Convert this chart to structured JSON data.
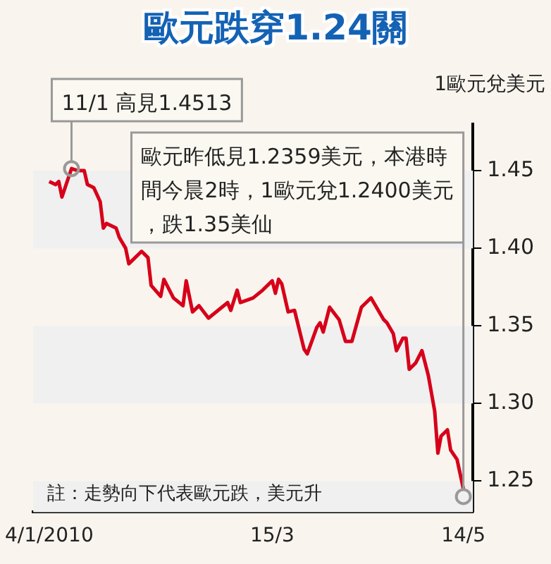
{
  "chart_data": {
    "type": "line",
    "title": "歐元跌穿1.24關",
    "ylabel": "1歐元兌美元",
    "x": [
      "2010-01-04",
      "2010-01-06",
      "2010-01-07",
      "2010-01-08",
      "2010-01-11",
      "2010-01-13",
      "2010-01-15",
      "2010-01-16",
      "2010-01-18",
      "2010-01-20",
      "2010-01-21",
      "2010-01-22",
      "2010-01-25",
      "2010-01-26",
      "2010-01-28",
      "2010-01-29",
      "2010-02-02",
      "2010-02-04",
      "2010-02-05",
      "2010-02-08",
      "2010-02-09",
      "2010-02-12",
      "2010-02-15",
      "2010-02-16",
      "2010-02-18",
      "2010-02-20",
      "2010-02-23",
      "2010-02-26",
      "2010-03-01",
      "2010-03-02",
      "2010-03-04",
      "2010-03-05",
      "2010-03-09",
      "2010-03-12",
      "2010-03-15",
      "2010-03-16",
      "2010-03-17",
      "2010-03-18",
      "2010-03-20",
      "2010-03-22",
      "2010-03-25",
      "2010-03-26",
      "2010-03-29",
      "2010-03-30",
      "2010-03-31",
      "2010-04-02",
      "2010-04-05",
      "2010-04-07",
      "2010-04-09",
      "2010-04-12",
      "2010-04-15",
      "2010-04-19",
      "2010-04-20",
      "2010-04-22",
      "2010-04-23",
      "2010-04-25",
      "2010-04-26",
      "2010-04-27",
      "2010-04-29",
      "2010-05-01",
      "2010-05-03",
      "2010-05-05",
      "2010-05-06",
      "2010-05-07",
      "2010-05-09",
      "2010-05-10",
      "2010-05-12",
      "2010-05-14"
    ],
    "series": [
      {
        "color": "#d7001a",
        "values": [
          1.443,
          1.441,
          1.443,
          1.433,
          1.4513,
          1.45,
          1.45,
          1.441,
          1.439,
          1.43,
          1.413,
          1.416,
          1.413,
          1.407,
          1.4,
          1.39,
          1.398,
          1.394,
          1.376,
          1.369,
          1.38,
          1.368,
          1.363,
          1.379,
          1.359,
          1.363,
          1.355,
          1.36,
          1.365,
          1.36,
          1.373,
          1.365,
          1.368,
          1.373,
          1.379,
          1.371,
          1.38,
          1.377,
          1.359,
          1.36,
          1.335,
          1.332,
          1.349,
          1.352,
          1.346,
          1.362,
          1.354,
          1.34,
          1.34,
          1.362,
          1.368,
          1.354,
          1.352,
          1.345,
          1.334,
          1.342,
          1.342,
          1.322,
          1.326,
          1.334,
          1.318,
          1.295,
          1.268,
          1.279,
          1.283,
          1.27,
          1.264,
          1.245
        ]
      }
    ],
    "xlim": [
      "2009-12-30",
      "2010-05-17"
    ],
    "xticks": [
      {
        "value": "2010-01-04",
        "label": "4/1/2010"
      },
      {
        "value": "2010-03-15",
        "label": "15/3"
      },
      {
        "value": "2010-05-14",
        "label": "14/5"
      }
    ],
    "ylim": [
      1.23,
      1.48
    ],
    "yticks": [
      1.25,
      {
        "value": 1.3,
        "label": "1.30"
      },
      1.35,
      {
        "value": 1.4,
        "label": "1.40"
      },
      1.45
    ],
    "bands": [
      {
        "axis": "y",
        "from": 1.4,
        "to": 1.45,
        "color": "#f0f0f0"
      },
      {
        "axis": "y",
        "from": 1.3,
        "to": 1.35,
        "color": "#f0f0f0"
      },
      {
        "axis": "y",
        "from": 1.23,
        "to": 1.25,
        "color": "#f0f0f0"
      }
    ],
    "annotations": [
      "註：走勢向下代表歐元跌，美元升",
      {
        "text": "11/1 高見1.4513",
        "x": "2010-01-11",
        "y": 1.4513
      },
      {
        "text": "歐元昨低見1.2359美元，本港時間今晨2時，1歐元兌1.2400美元，跌1.35美仙",
        "x": "2010-05-14",
        "y": 1.24
      }
    ],
    "grid": false,
    "legend": false,
    "marker": "none",
    "line_style": "solid"
  }
}
